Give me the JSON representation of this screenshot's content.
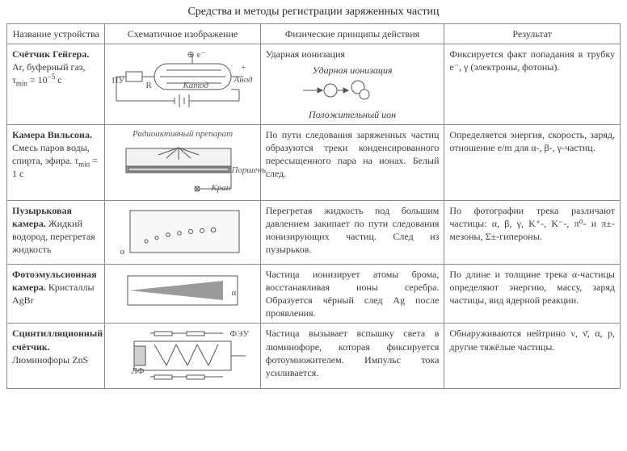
{
  "title": "Средства и методы регистрации заряженных частиц",
  "headers": {
    "c1": "Название устройства",
    "c2": "Схематичное изображение",
    "c3": "Физические принципы действия",
    "c4": "Результат"
  },
  "style": {
    "border_color": "#888888",
    "text_color": "#3a3a3a",
    "schematic_stroke": "#555555",
    "schematic_fill_light": "#f2f2f2",
    "schematic_fill_dark": "#9a9a9a",
    "font_family": "Times New Roman"
  },
  "rows": [
    {
      "device": "<b>Счётчик Гейгера.</b> Ar, буферный газ, τ<sub>min</sub> = 10<sup>−5</sup> с",
      "schematic_labels": {
        "anode": "+ Анод",
        "cathode": "Катод",
        "e": "⊕ e⁻",
        "hv": "ПУ",
        "r": "R"
      },
      "principle_main": "Ударная ионизация",
      "principle_sub": "Ударная ионизация",
      "principle_label": "Положительный ион",
      "result": "Фиксируется факт попадания в трубку e⁻, γ (электроны, фотоны)."
    },
    {
      "device": "<b>Камера Вильсона.</b> Смесь паров воды, спирта, эфира. τ<sub>min</sub> = 1 с",
      "schematic_labels": {
        "source": "Радиоактивный препарат",
        "piston": "Поршень",
        "valve": "Кран"
      },
      "principle": "По пути следования заряженных частиц образуются треки конденсированного пересыщенного пара на ионах. Белый след.",
      "result": "Определяется энергия, скорость, заряд, отношение e/m для α-, β-, γ-частиц."
    },
    {
      "device": "<b>Пузырьковая камера.</b> Жидкий водород, перегретая жидкость",
      "schematic_labels": {
        "alpha": "α"
      },
      "principle": "Перегретая жидкость под большим давлением закипает по пути следования ионизирующих частиц. След из пузырьков.",
      "result": "По фотографии трека различают частицы: α, β, γ, K⁺-, K⁻-, π⁰- и π±-мезоны, Σ±-гипероны."
    },
    {
      "device": "<b>Фотоэмульсионная камера.</b> Кристаллы AgBr",
      "schematic_labels": {
        "alpha": "α"
      },
      "principle": "Частица ионизирует атомы брома, восстанавливая ионы серебра. Образуется чёрный след Ag после проявления.",
      "result": "По длине и толщине трека α-частицы определяют энергию, массу, заряд частицы, вид ядерной реакции."
    },
    {
      "device": "<b>Сцинтилляционный счётчик.</b> Люминофоры ZnS",
      "schematic_labels": {
        "pmt": "ФЭУ",
        "lf": "ЛФ"
      },
      "principle": "Частица вызывает вспышку света в люминофоре, которая фиксируется фотоумножителем. Импульс тока усиливается.",
      "result": "Обнаруживаются нейтрино ν, ν̄, α, p, другие тяжёлые частицы."
    }
  ]
}
